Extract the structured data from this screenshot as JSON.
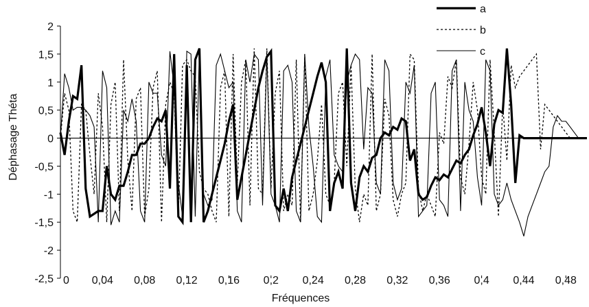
{
  "chart_data": {
    "type": "line",
    "title": "",
    "xlabel": "Fréquences",
    "ylabel": "Déphasage Théta",
    "xlim": [
      0,
      0.5
    ],
    "ylim": [
      -2.5,
      2
    ],
    "x_ticks": [
      0,
      0.04,
      0.08,
      0.12,
      0.16,
      0.2,
      0.24,
      0.28,
      0.32,
      0.36,
      0.4,
      0.44,
      0.48
    ],
    "x_tick_labels": [
      "0",
      "0,04",
      "0,08",
      "0,12",
      "0,16",
      "0,2",
      "0,24",
      "0,28",
      "0,32",
      "0,36",
      "0,4",
      "0,44",
      "0,48"
    ],
    "y_ticks": [
      -2.5,
      -2,
      -1.5,
      -1,
      -0.5,
      0,
      0.5,
      1,
      1.5,
      2
    ],
    "y_tick_labels": [
      "-2,5",
      "-2",
      "-1,5",
      "-1",
      "-0,5",
      "0",
      "0,5",
      "1",
      "1,5",
      "2"
    ],
    "grid": false,
    "zero_line": true,
    "legend_position": "top-right",
    "x": [
      0,
      0.004,
      0.008,
      0.012,
      0.016,
      0.02,
      0.024,
      0.028,
      0.032,
      0.036,
      0.04,
      0.044,
      0.048,
      0.052,
      0.056,
      0.06,
      0.064,
      0.068,
      0.072,
      0.076,
      0.08,
      0.084,
      0.088,
      0.092,
      0.096,
      0.1,
      0.104,
      0.108,
      0.112,
      0.116,
      0.12,
      0.124,
      0.128,
      0.132,
      0.136,
      0.14,
      0.144,
      0.148,
      0.152,
      0.156,
      0.16,
      0.164,
      0.168,
      0.172,
      0.176,
      0.18,
      0.184,
      0.188,
      0.192,
      0.196,
      0.2,
      0.204,
      0.208,
      0.212,
      0.216,
      0.22,
      0.224,
      0.228,
      0.232,
      0.236,
      0.24,
      0.244,
      0.248,
      0.252,
      0.256,
      0.26,
      0.264,
      0.268,
      0.272,
      0.276,
      0.28,
      0.284,
      0.288,
      0.292,
      0.296,
      0.3,
      0.304,
      0.308,
      0.312,
      0.316,
      0.32,
      0.324,
      0.328,
      0.332,
      0.336,
      0.34,
      0.344,
      0.348,
      0.352,
      0.356,
      0.36,
      0.364,
      0.368,
      0.372,
      0.376,
      0.38,
      0.384,
      0.388,
      0.392,
      0.396,
      0.4,
      0.404,
      0.408,
      0.412,
      0.416,
      0.42,
      0.424,
      0.428,
      0.432,
      0.436,
      0.44,
      0.444,
      0.448,
      0.452,
      0.456,
      0.46,
      0.464,
      0.468,
      0.472,
      0.476,
      0.48,
      0.484,
      0.488,
      0.492,
      0.496,
      0.5
    ],
    "series": [
      {
        "name": "a",
        "style": "solid-thick",
        "color": "#000000",
        "values": [
          0.1,
          -0.3,
          0.3,
          0.75,
          0.7,
          1.3,
          -0.9,
          -1.4,
          -1.35,
          -1.3,
          -1.3,
          -0.5,
          -1.0,
          -1.1,
          -0.85,
          -0.85,
          -0.6,
          -0.3,
          -0.3,
          -0.1,
          -0.1,
          0.0,
          0.2,
          0.35,
          0.3,
          0.5,
          -0.9,
          1.5,
          -1.4,
          -1.5,
          1.3,
          -1.5,
          1.4,
          1.6,
          -1.5,
          -1.3,
          -1.0,
          -0.7,
          -0.4,
          -0.1,
          0.3,
          0.6,
          -1.1,
          -0.7,
          -0.3,
          0.1,
          0.5,
          0.9,
          1.2,
          1.45,
          1.55,
          -1.2,
          -1.3,
          -0.9,
          -1.3,
          -0.7,
          -0.4,
          -0.1,
          0.2,
          0.5,
          0.8,
          1.1,
          1.35,
          1.0,
          -1.3,
          -0.8,
          -0.6,
          -0.9,
          1.6,
          -0.8,
          -1.3,
          -0.7,
          -0.5,
          -0.6,
          -0.35,
          -0.3,
          0.0,
          0.1,
          0.05,
          0.2,
          0.15,
          0.35,
          0.3,
          -0.4,
          -0.2,
          -1.0,
          -1.1,
          -1.05,
          -0.85,
          -0.7,
          -0.75,
          -0.65,
          -0.7,
          -0.55,
          -0.4,
          -0.45,
          -0.3,
          -0.2,
          0.05,
          0.25,
          0.55,
          0.1,
          -0.5,
          0.25,
          0.5,
          0.45,
          1.6,
          0.6,
          -0.8,
          0.05,
          0.0,
          0.0,
          0.0,
          0.0,
          0.0,
          0.0,
          0.0,
          0.0,
          0.0,
          0.0,
          0.0,
          0.0,
          0.0,
          0.0,
          0.0,
          0.0
        ]
      },
      {
        "name": "b",
        "style": "dotted",
        "color": "#000000",
        "values": [
          0.0,
          0.8,
          0.5,
          -1.3,
          -1.5,
          0.6,
          0.5,
          -0.3,
          -1.0,
          0.8,
          0.2,
          -1.5,
          0.6,
          1.0,
          -1.3,
          1.4,
          -0.4,
          -1.3,
          0.7,
          0.9,
          -1.4,
          -0.9,
          0.9,
          1.2,
          -1.5,
          0.6,
          1.0,
          0.8,
          -1.4,
          1.3,
          1.4,
          1.2,
          1.1,
          -0.6,
          -0.9,
          -1.0,
          -1.3,
          -1.5,
          0.9,
          1.2,
          -1.4,
          1.5,
          -0.8,
          1.0,
          1.4,
          -1.2,
          1.6,
          -0.9,
          -1.0,
          1.6,
          -0.9,
          0.8,
          1.2,
          -1.3,
          -1.0,
          -1.2,
          1.4,
          -1.5,
          1.5,
          -1.3,
          -1.0,
          -0.4,
          0.6,
          -1.0,
          -1.2,
          -0.8,
          0.8,
          1.0,
          -0.5,
          1.3,
          -0.9,
          -1.5,
          -1.0,
          -1.2,
          1.5,
          -1.3,
          -1.0,
          0.7,
          0.4,
          -1.1,
          -1.4,
          -1.0,
          -0.8,
          1.5,
          1.4,
          -0.9,
          -1.3,
          -1.0,
          -1.2,
          -1.4,
          0.1,
          -0.1,
          1.1,
          0.9,
          1.4,
          -0.7,
          -1.0,
          -0.1,
          1.0,
          0.5,
          -0.7,
          -1.0,
          1.4,
          0.1,
          -1.4,
          0.6,
          -0.4,
          1.3,
          0.9,
          1.1,
          1.2,
          1.3,
          1.4,
          1.5,
          -0.2,
          0.6,
          0.5,
          0.4,
          0.3,
          0.2,
          0.1,
          0.0,
          0.0,
          0.0,
          0.0,
          0.0
        ]
      },
      {
        "name": "c",
        "style": "solid-thin",
        "color": "#000000",
        "values": [
          0.0,
          1.15,
          0.9,
          0.5,
          0.55,
          0.55,
          0.5,
          0.4,
          0.2,
          -1.5,
          1.2,
          0.9,
          -1.55,
          -1.3,
          -1.5,
          0.5,
          0.3,
          0.7,
          0.3,
          -1.3,
          -1.5,
          1.0,
          0.8,
          0.8,
          -0.3,
          -0.5,
          1.55,
          0.9,
          -0.8,
          -1.4,
          1.55,
          1.5,
          -1.4,
          1.6,
          -1.0,
          -1.2,
          -1.1,
          1.3,
          1.5,
          1.2,
          0.9,
          1.0,
          -1.3,
          -1.5,
          1.4,
          1.0,
          1.5,
          1.4,
          -1.2,
          1.5,
          -1.0,
          -1.2,
          -1.5,
          1.2,
          1.3,
          1.0,
          -1.3,
          -1.5,
          1.5,
          0.2,
          -0.5,
          -1.4,
          -1.5,
          1.1,
          1.4,
          -0.3,
          -0.5,
          -0.6,
          1.0,
          1.3,
          1.5,
          1.4,
          -0.2,
          0.9,
          0.8,
          -0.8,
          -1.0,
          1.4,
          1.2,
          -0.8,
          -1.1,
          -0.9,
          1.0,
          0.8,
          1.3,
          -1.4,
          -1.3,
          -1.2,
          0.8,
          1.0,
          -1.1,
          -1.2,
          -1.4,
          1.2,
          1.4,
          -1.3,
          1.0,
          0.5,
          0.3,
          -0.7,
          -1.2,
          1.4,
          1.2,
          -1.0,
          -1.2,
          -1.1,
          -0.8,
          -1.1,
          -1.3,
          -1.5,
          -1.75,
          -1.4,
          -1.2,
          -1.0,
          -0.8,
          -0.6,
          -0.5,
          0.2,
          0.4,
          0.3,
          0.3,
          0.2,
          0.1,
          0.0,
          0.0,
          0.0
        ]
      }
    ]
  }
}
